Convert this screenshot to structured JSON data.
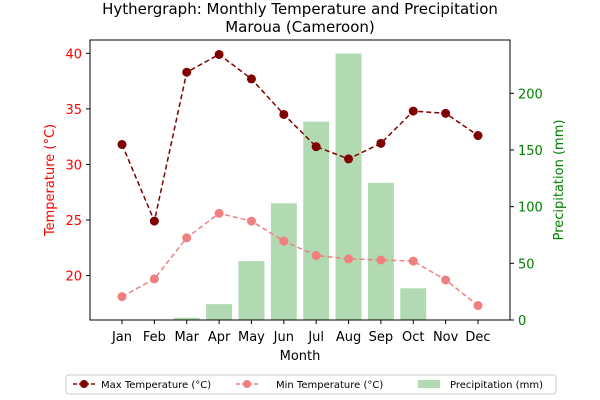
{
  "chart_data": {
    "type": "bar+line",
    "title_line1": "Hythergraph: Monthly Temperature and Precipitation",
    "title_line2": "Maroua (Cameroon)",
    "xlabel": "Month",
    "ylabel_left": "Temperature (°C)",
    "ylabel_right": "Precipitation (mm)",
    "categories": [
      "Jan",
      "Feb",
      "Mar",
      "Apr",
      "May",
      "Jun",
      "Jul",
      "Aug",
      "Sep",
      "Oct",
      "Nov",
      "Dec"
    ],
    "ylim_left": [
      16.0,
      41.2
    ],
    "ylim_right": [
      0,
      247
    ],
    "yticks_left": [
      20,
      25,
      30,
      35,
      40
    ],
    "yticks_right": [
      0,
      50,
      100,
      150,
      200
    ],
    "series": [
      {
        "name": "Max Temperature (°C)",
        "type": "line",
        "axis": "left",
        "color": "#800000",
        "values": [
          31.8,
          24.9,
          38.3,
          39.9,
          37.7,
          34.5,
          31.6,
          30.5,
          31.9,
          34.8,
          34.6,
          32.6
        ]
      },
      {
        "name": "Min Temperature (°C)",
        "type": "line",
        "axis": "left",
        "color": "#f08080",
        "values": [
          18.1,
          19.7,
          23.4,
          25.6,
          24.9,
          23.1,
          21.8,
          21.5,
          21.4,
          21.3,
          19.6,
          17.3
        ]
      },
      {
        "name": "Precipitation (mm)",
        "type": "bar",
        "axis": "right",
        "color": "#b2dab2",
        "values": [
          0,
          0,
          2,
          14,
          52,
          103,
          175,
          235,
          121,
          28,
          0,
          0
        ]
      }
    ],
    "legend_position": "bottom-center",
    "left_axis_color": "#ff0000",
    "right_axis_color": "#008000"
  }
}
